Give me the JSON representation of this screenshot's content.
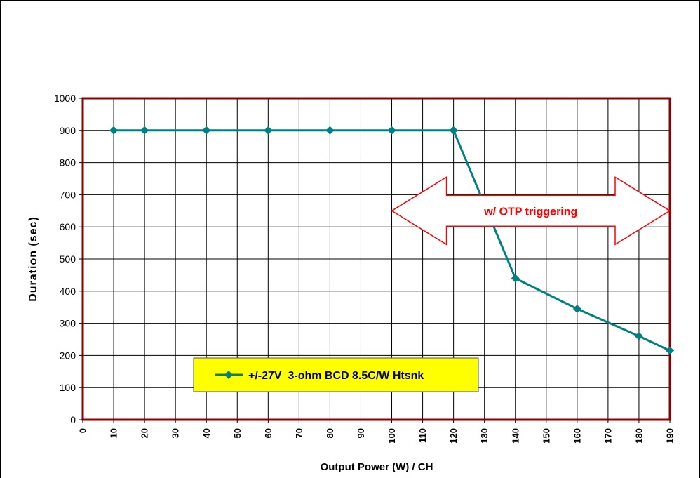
{
  "chart_data": {
    "type": "line",
    "xlabel": "Output Power (W) / CH",
    "ylabel": "Duration (sec)",
    "x_ticks": [
      "0",
      "10",
      "20",
      "30",
      "40",
      "50",
      "60",
      "70",
      "80",
      "90",
      "100",
      "110",
      "120",
      "130",
      "140",
      "150",
      "160",
      "170",
      "180",
      "190"
    ],
    "y_ticks": [
      "0",
      "100",
      "200",
      "300",
      "400",
      "500",
      "600",
      "700",
      "800",
      "900",
      "1000"
    ],
    "xlim": [
      0,
      190
    ],
    "ylim": [
      0,
      1000
    ],
    "grid": true,
    "legend_position": "bottom-left",
    "series": [
      {
        "name": "+/-27V  3-ohm BCD 8.5C/W Htsnk",
        "color": "#008080",
        "x": [
          10,
          20,
          40,
          60,
          80,
          100,
          120,
          140,
          160,
          180,
          190
        ],
        "y": [
          900,
          900,
          900,
          900,
          900,
          900,
          900,
          440,
          345,
          260,
          215
        ]
      }
    ],
    "annotation": {
      "text": "w/ OTP triggering",
      "x_range": [
        100,
        190
      ],
      "y": 650,
      "color": "#ff0000"
    },
    "colors": {
      "plot_border": "#8b0000",
      "grid": "#000000",
      "legend_bg": "#ffff00",
      "legend_text": "#00008b"
    }
  }
}
